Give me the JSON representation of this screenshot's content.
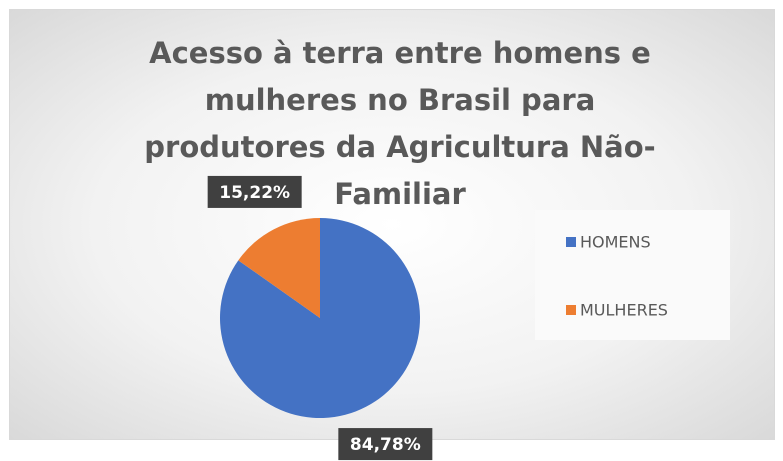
{
  "chart_data": {
    "type": "pie",
    "title": "Acesso à terra entre homens e mulheres no Brasil para produtores da Agricultura Não-Familiar",
    "categories": [
      "HOMENS",
      "MULHERES"
    ],
    "values": [
      84.78,
      15.22
    ],
    "value_labels": [
      "84,78%",
      "15,22%"
    ],
    "colors": [
      "#4472c4",
      "#ed7d31"
    ],
    "legend": "right"
  }
}
